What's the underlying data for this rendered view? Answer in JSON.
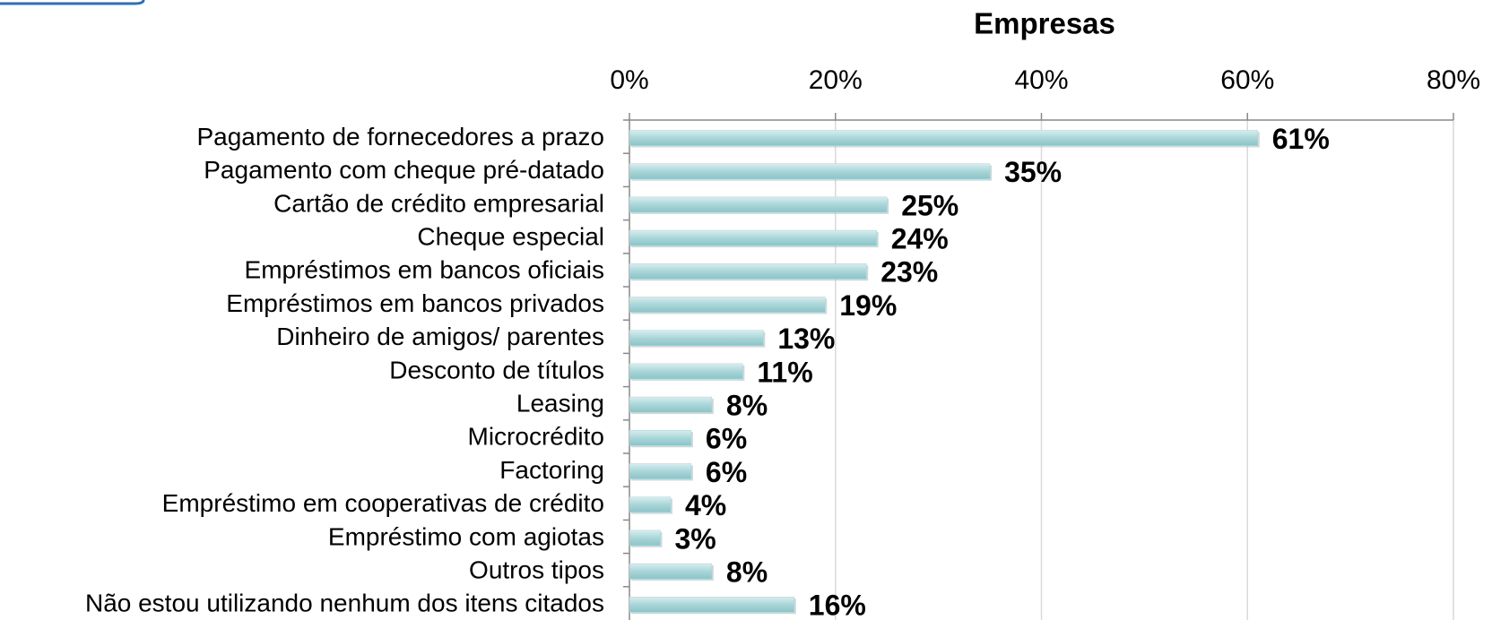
{
  "chart_data": {
    "type": "bar",
    "orientation": "horizontal",
    "title": "Empresas",
    "categories": [
      "Pagamento de fornecedores a prazo",
      "Pagamento com cheque pré-datado",
      "Cartão de crédito empresarial",
      "Cheque especial",
      "Empréstimos em bancos oficiais",
      "Empréstimos em bancos privados",
      "Dinheiro de amigos/ parentes",
      "Desconto de títulos",
      "Leasing",
      "Microcrédito",
      "Factoring",
      "Empréstimo em cooperativas de crédito",
      "Empréstimo com agiotas",
      "Outros tipos",
      "Não estou utilizando nenhum dos itens citados"
    ],
    "values": [
      61,
      35,
      25,
      24,
      23,
      19,
      13,
      11,
      8,
      6,
      6,
      4,
      3,
      8,
      16
    ],
    "value_labels": [
      "61%",
      "35%",
      "25%",
      "24%",
      "23%",
      "19%",
      "13%",
      "11%",
      "8%",
      "6%",
      "6%",
      "4%",
      "3%",
      "8%",
      "16%"
    ],
    "color": "#a9d6d9",
    "xlim": [
      0,
      80
    ],
    "xticks": [
      {
        "value": 0,
        "label": "0%"
      },
      {
        "value": 20,
        "label": "20%"
      },
      {
        "value": 40,
        "label": "40%"
      },
      {
        "value": 60,
        "label": "60%"
      },
      {
        "value": 80,
        "label": "80%"
      }
    ],
    "grid": true
  }
}
